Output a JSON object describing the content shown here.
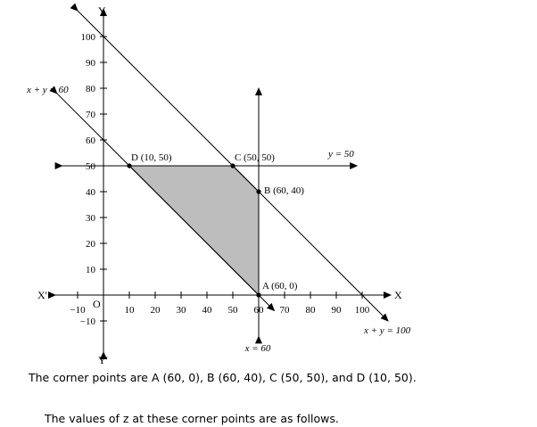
{
  "axes": {
    "x_name": "X",
    "x_neg_name": "X'",
    "y_name": "Y",
    "y_neg_name": "Y'",
    "origin": "O",
    "x_ticks": [
      {
        "value": -10,
        "label": "−10"
      },
      {
        "value": 10,
        "label": "10"
      },
      {
        "value": 20,
        "label": "20"
      },
      {
        "value": 30,
        "label": "30"
      },
      {
        "value": 40,
        "label": "40"
      },
      {
        "value": 50,
        "label": "50"
      },
      {
        "value": 60,
        "label": "60"
      },
      {
        "value": 70,
        "label": "70"
      },
      {
        "value": 80,
        "label": "80"
      },
      {
        "value": 90,
        "label": "90"
      },
      {
        "value": 100,
        "label": "100"
      }
    ],
    "y_ticks": [
      {
        "value": -10,
        "label": "−10"
      },
      {
        "value": 10,
        "label": "10"
      },
      {
        "value": 20,
        "label": "20"
      },
      {
        "value": 30,
        "label": "30"
      },
      {
        "value": 40,
        "label": "40"
      },
      {
        "value": 50,
        "label": "50"
      },
      {
        "value": 60,
        "label": "60"
      },
      {
        "value": 70,
        "label": "70"
      },
      {
        "value": 80,
        "label": "80"
      },
      {
        "value": 90,
        "label": "90"
      },
      {
        "value": 100,
        "label": "100"
      }
    ]
  },
  "lines": [
    {
      "id": "x-plus-y-100",
      "label": "x + y = 100",
      "from": [
        -10,
        110
      ],
      "to": [
        110,
        -10
      ]
    },
    {
      "id": "x-plus-y-60",
      "label": "x + y = 60",
      "from": [
        -18,
        78
      ],
      "to": [
        66,
        -6
      ]
    },
    {
      "id": "y-50",
      "label": "y = 50",
      "from": [
        -16,
        50
      ],
      "to": [
        98,
        50
      ]
    },
    {
      "id": "x-60",
      "label": "x = 60",
      "from": [
        60,
        -16
      ],
      "to": [
        60,
        80
      ]
    }
  ],
  "feasible_region": [
    [
      10,
      50
    ],
    [
      50,
      50
    ],
    [
      60,
      40
    ],
    [
      60,
      0
    ]
  ],
  "corner_points": [
    {
      "name": "A",
      "label": "A (60, 0)",
      "x": 60,
      "y": 0
    },
    {
      "name": "B",
      "label": "B (60, 40)",
      "x": 60,
      "y": 40
    },
    {
      "name": "C",
      "label": "C (50, 50)",
      "x": 50,
      "y": 50
    },
    {
      "name": "D",
      "label": "D (10, 50)",
      "x": 10,
      "y": 50
    }
  ],
  "colors": {
    "region_fill": "#bdbdbd",
    "ink": "#000000"
  },
  "text": {
    "corner_points_sentence": "The corner points are A (60, 0), B (60, 40), C (50, 50), and D (10, 50).",
    "values_sentence": "The values of z at these corner points are as follows."
  }
}
